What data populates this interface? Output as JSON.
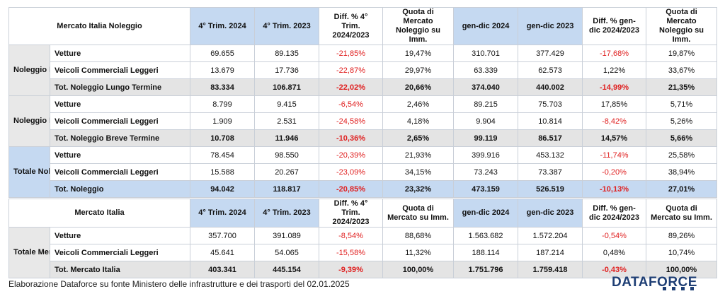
{
  "noleggio": {
    "title": "Mercato Italia Noleggio",
    "headers": [
      "4° Trim. 2024",
      "4° Trim. 2023",
      "Diff. % 4° Trim. 2024/2023",
      "Quota di Mercato Noleggio su Imm.",
      "gen-dic 2024",
      "gen-dic 2023",
      "Diff. % gen- dic 2024/2023",
      "Quota di Mercato Noleggio su Imm."
    ],
    "groups": [
      {
        "name": "Noleggio Lungo Termine",
        "rows": [
          {
            "label": "Vetture",
            "cells": [
              "69.655",
              "89.135",
              "-21,85%",
              "19,47%",
              "310.701",
              "377.429",
              "-17,68%",
              "19,87%"
            ]
          },
          {
            "label": "Veicoli Commerciali Leggeri",
            "cells": [
              "13.679",
              "17.736",
              "-22,87%",
              "29,97%",
              "63.339",
              "62.573",
              "1,22%",
              "33,67%"
            ]
          },
          {
            "label": "Tot. Noleggio Lungo Termine",
            "cells": [
              "83.334",
              "106.871",
              "-22,02%",
              "20,66%",
              "374.040",
              "440.002",
              "-14,99%",
              "21,35%"
            ]
          }
        ]
      },
      {
        "name": "Noleggio Breve Termine",
        "rows": [
          {
            "label": "Vetture",
            "cells": [
              "8.799",
              "9.415",
              "-6,54%",
              "2,46%",
              "89.215",
              "75.703",
              "17,85%",
              "5,71%"
            ]
          },
          {
            "label": "Veicoli Commerciali Leggeri",
            "cells": [
              "1.909",
              "2.531",
              "-24,58%",
              "4,18%",
              "9.904",
              "10.814",
              "-8,42%",
              "5,26%"
            ]
          },
          {
            "label": "Tot. Noleggio Breve Termine",
            "cells": [
              "10.708",
              "11.946",
              "-10,36%",
              "2,65%",
              "99.119",
              "86.517",
              "14,57%",
              "5,66%"
            ]
          }
        ]
      },
      {
        "name": "Totale Noleggio",
        "rows": [
          {
            "label": "Vetture",
            "cells": [
              "78.454",
              "98.550",
              "-20,39%",
              "21,93%",
              "399.916",
              "453.132",
              "-11,74%",
              "25,58%"
            ]
          },
          {
            "label": "Veicoli Commerciali Leggeri",
            "cells": [
              "15.588",
              "20.267",
              "-23,09%",
              "34,15%",
              "73.243",
              "73.387",
              "-0,20%",
              "38,94%"
            ]
          },
          {
            "label": "Tot. Noleggio",
            "cells": [
              "94.042",
              "118.817",
              "-20,85%",
              "23,32%",
              "473.159",
              "526.519",
              "-10,13%",
              "27,01%"
            ]
          }
        ]
      }
    ]
  },
  "mercato": {
    "title": "Mercato Italia",
    "headers": [
      "4° Trim. 2024",
      "4° Trim. 2023",
      "Diff. % 4° Trim. 2024/2023",
      "Quota di Mercato su Imm.",
      "gen-dic 2024",
      "gen-dic 2023",
      "Diff. % gen- dic 2024/2023",
      "Quota di Mercato su Imm."
    ],
    "group": {
      "name": "Totale Mercato Italia",
      "rows": [
        {
          "label": "Vetture",
          "cells": [
            "357.700",
            "391.089",
            "-8,54%",
            "88,68%",
            "1.563.682",
            "1.572.204",
            "-0,54%",
            "89,26%"
          ]
        },
        {
          "label": "Veicoli Commerciali Leggeri",
          "cells": [
            "45.641",
            "54.065",
            "-15,58%",
            "11,32%",
            "188.114",
            "187.214",
            "0,48%",
            "10,74%"
          ]
        },
        {
          "label": "Tot. Mercato Italia",
          "cells": [
            "403.341",
            "445.154",
            "-9,39%",
            "100,00%",
            "1.751.796",
            "1.759.418",
            "-0,43%",
            "100,00%"
          ]
        }
      ]
    }
  },
  "footer": {
    "note": "Elaborazione Dataforce su fonte Ministero delle infrastrutture e dei trasporti del 02.01.2025",
    "brand": "DATAFORCE"
  },
  "colors": {
    "header_blue": "#c5d9f1",
    "total_gray": "#e4e4e4",
    "negative_red": "#e02020",
    "brand_navy": "#1f3f75"
  }
}
